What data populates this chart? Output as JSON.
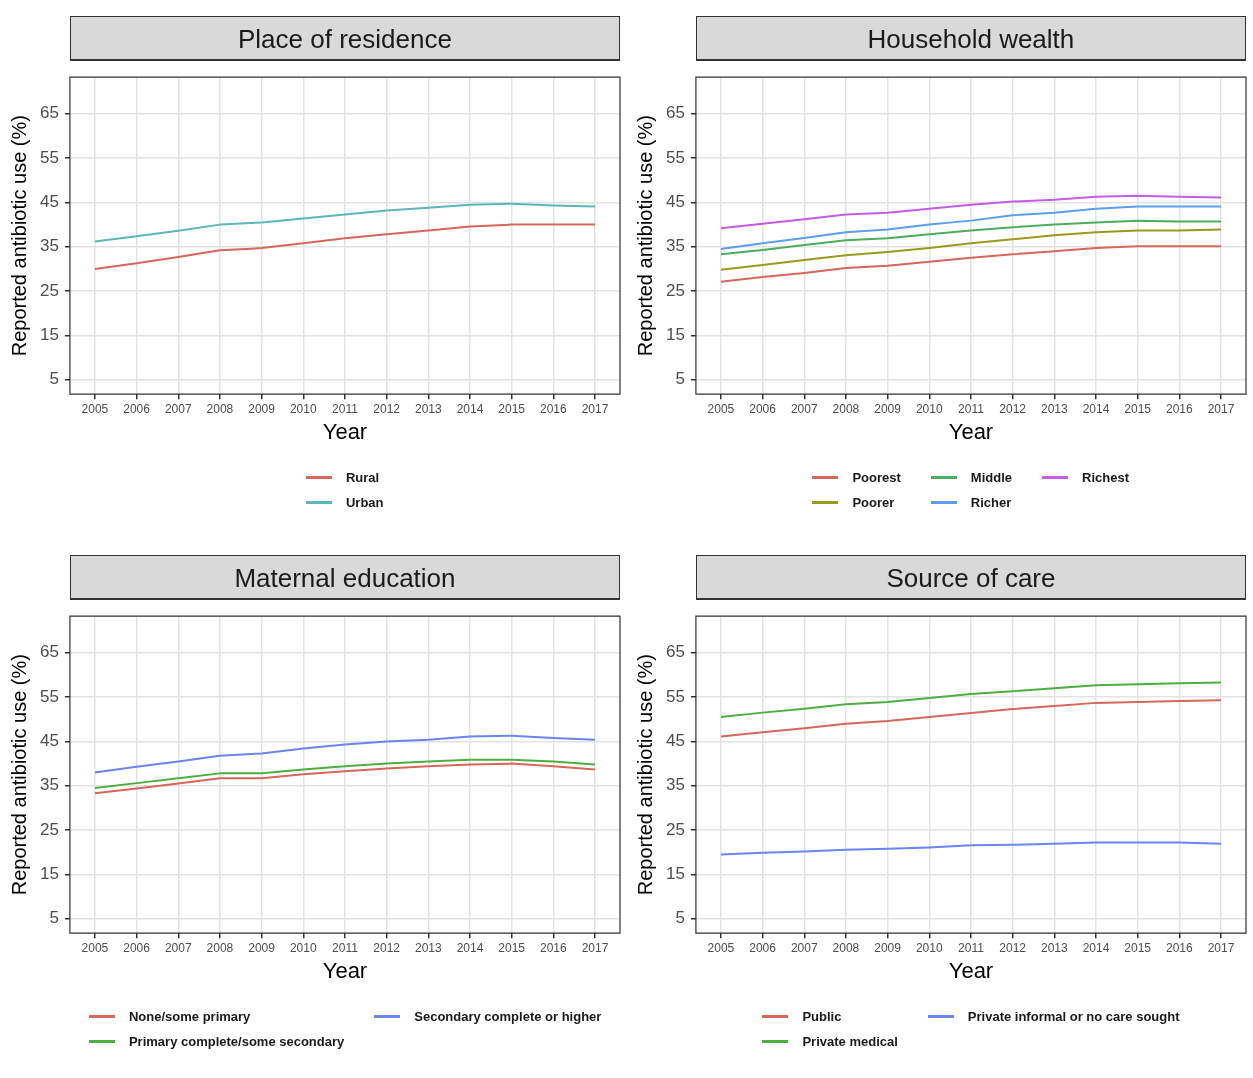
{
  "chart_data": [
    {
      "type": "line",
      "title": "Place of residence",
      "xlabel": "Year",
      "ylabel": "Reported antibiotic use (%)",
      "x": [
        2005,
        2006,
        2007,
        2008,
        2009,
        2010,
        2011,
        2012,
        2013,
        2014,
        2015,
        2016,
        2017
      ],
      "xlim": [
        2004.4,
        2017.6
      ],
      "xticks": [
        2005,
        2006,
        2007,
        2008,
        2009,
        2010,
        2011,
        2012,
        2013,
        2014,
        2015,
        2016,
        2017
      ],
      "ylim": [
        1.75,
        73.25
      ],
      "yticks": [
        5,
        15,
        25,
        35,
        45,
        55,
        65
      ],
      "grid": true,
      "legend": "bottom",
      "series": [
        {
          "name": "Rural",
          "color": "#d5675b",
          "values": [
            30.0,
            31.3,
            32.7,
            34.2,
            34.7,
            35.8,
            36.9,
            37.8,
            38.7,
            39.6,
            40.0,
            40.0,
            40.0
          ]
        },
        {
          "name": "Urban",
          "color": "#5bb7bb",
          "values": [
            36.2,
            37.4,
            38.6,
            40.0,
            40.5,
            41.4,
            42.3,
            43.2,
            43.8,
            44.5,
            44.7,
            44.3,
            44.1
          ]
        }
      ]
    },
    {
      "type": "line",
      "title": "Household wealth",
      "xlabel": "Year",
      "ylabel": "Reported antibiotic use (%)",
      "x": [
        2005,
        2006,
        2007,
        2008,
        2009,
        2010,
        2011,
        2012,
        2013,
        2014,
        2015,
        2016,
        2017
      ],
      "xlim": [
        2004.4,
        2017.6
      ],
      "xticks": [
        2005,
        2006,
        2007,
        2008,
        2009,
        2010,
        2011,
        2012,
        2013,
        2014,
        2015,
        2016,
        2017
      ],
      "ylim": [
        1.75,
        73.25
      ],
      "yticks": [
        5,
        15,
        25,
        35,
        45,
        55,
        65
      ],
      "grid": true,
      "legend": "bottom",
      "series": [
        {
          "name": "Poorest",
          "color": "#d5675b",
          "values": [
            27.1,
            28.2,
            29.1,
            30.2,
            30.7,
            31.6,
            32.5,
            33.3,
            34.0,
            34.7,
            35.1,
            35.1,
            35.1
          ]
        },
        {
          "name": "Poorer",
          "color": "#9a9a1f",
          "values": [
            29.8,
            30.9,
            32.0,
            33.1,
            33.8,
            34.7,
            35.8,
            36.7,
            37.6,
            38.3,
            38.7,
            38.7,
            38.9
          ]
        },
        {
          "name": "Middle",
          "color": "#4cae5c",
          "values": [
            33.3,
            34.3,
            35.4,
            36.5,
            36.9,
            37.8,
            38.7,
            39.4,
            40.0,
            40.5,
            40.9,
            40.7,
            40.7
          ]
        },
        {
          "name": "Richer",
          "color": "#5c9ef0",
          "values": [
            34.5,
            35.8,
            37.0,
            38.3,
            38.9,
            40.0,
            40.9,
            42.1,
            42.7,
            43.6,
            44.1,
            44.1,
            44.1
          ]
        },
        {
          "name": "Richest",
          "color": "#c45ce6",
          "values": [
            39.2,
            40.2,
            41.2,
            42.3,
            42.7,
            43.6,
            44.5,
            45.2,
            45.6,
            46.3,
            46.5,
            46.3,
            46.1
          ]
        }
      ]
    },
    {
      "type": "line",
      "title": "Maternal education",
      "xlabel": "Year",
      "ylabel": "Reported antibiotic use (%)",
      "x": [
        2005,
        2006,
        2007,
        2008,
        2009,
        2010,
        2011,
        2012,
        2013,
        2014,
        2015,
        2016,
        2017
      ],
      "xlim": [
        2004.4,
        2017.6
      ],
      "xticks": [
        2005,
        2006,
        2007,
        2008,
        2009,
        2010,
        2011,
        2012,
        2013,
        2014,
        2015,
        2016,
        2017
      ],
      "ylim": [
        1.75,
        73.25
      ],
      "yticks": [
        5,
        15,
        25,
        35,
        45,
        55,
        65
      ],
      "grid": true,
      "legend": "bottom",
      "series": [
        {
          "name": "None/some primary",
          "color": "#d5675b",
          "values": [
            33.3,
            34.4,
            35.5,
            36.7,
            36.7,
            37.6,
            38.3,
            38.9,
            39.4,
            39.8,
            40.0,
            39.4,
            38.7
          ]
        },
        {
          "name": "Primary complete/some secondary",
          "color": "#4caf3f",
          "values": [
            34.5,
            35.6,
            36.7,
            37.8,
            37.8,
            38.7,
            39.4,
            40.0,
            40.5,
            40.9,
            40.9,
            40.5,
            39.8
          ]
        },
        {
          "name": "Secondary complete or higher",
          "color": "#6b84f0",
          "values": [
            38.0,
            39.3,
            40.5,
            41.8,
            42.3,
            43.4,
            44.3,
            45.0,
            45.4,
            46.1,
            46.3,
            45.8,
            45.4
          ]
        }
      ]
    },
    {
      "type": "line",
      "title": "Source of care",
      "xlabel": "Year",
      "ylabel": "Reported antibiotic use (%)",
      "x": [
        2005,
        2006,
        2007,
        2008,
        2009,
        2010,
        2011,
        2012,
        2013,
        2014,
        2015,
        2016,
        2017
      ],
      "xlim": [
        2004.4,
        2017.6
      ],
      "xticks": [
        2005,
        2006,
        2007,
        2008,
        2009,
        2010,
        2011,
        2012,
        2013,
        2014,
        2015,
        2016,
        2017
      ],
      "ylim": [
        1.75,
        73.25
      ],
      "yticks": [
        5,
        15,
        25,
        35,
        45,
        55,
        65
      ],
      "grid": true,
      "legend": "bottom",
      "series": [
        {
          "name": "Public",
          "color": "#d5675b",
          "values": [
            46.1,
            47.1,
            48.0,
            49.0,
            49.6,
            50.5,
            51.4,
            52.3,
            53.0,
            53.7,
            53.9,
            54.1,
            54.3
          ]
        },
        {
          "name": "Private medical",
          "color": "#4caf3f",
          "values": [
            50.5,
            51.5,
            52.4,
            53.4,
            53.9,
            54.8,
            55.7,
            56.3,
            57.0,
            57.7,
            57.9,
            58.1,
            58.3
          ]
        },
        {
          "name": "Private informal or no care sought",
          "color": "#6b84f0",
          "values": [
            19.5,
            19.9,
            20.2,
            20.6,
            20.8,
            21.1,
            21.6,
            21.7,
            21.9,
            22.2,
            22.2,
            22.2,
            21.9
          ]
        }
      ]
    }
  ]
}
